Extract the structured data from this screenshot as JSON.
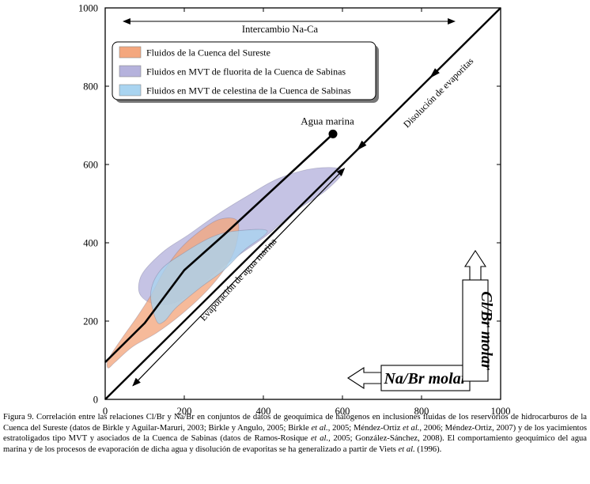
{
  "chart_data": {
    "type": "scatter",
    "xlim": [
      0,
      1000
    ],
    "ylim": [
      0,
      1000
    ],
    "xticks": [
      0,
      200,
      400,
      600,
      800,
      1000
    ],
    "yticks": [
      0,
      200,
      400,
      600,
      800,
      1000
    ],
    "xlabel": "Na/Br molar",
    "ylabel": "Cl/Br molar",
    "legend_position": "top-left",
    "legend": [
      {
        "label": "Fluidos de la Cuenca del Sureste",
        "color": "#f4a77e"
      },
      {
        "label": "Fluidos en MVT de fluorita de la Cuenca de Sabinas",
        "color": "#b5b2dc"
      },
      {
        "label": "Fluidos en MVT de celestina de la Cuenca de Sabinas",
        "color": "#a9d4f0"
      }
    ],
    "regions": [
      {
        "name": "Fluidos en MVT de fluorita de la Cuenca de Sabinas",
        "color": "#b5b2dc",
        "polygon": [
          [
            85,
            295
          ],
          [
            100,
            330
          ],
          [
            150,
            380
          ],
          [
            210,
            420
          ],
          [
            280,
            470
          ],
          [
            360,
            520
          ],
          [
            440,
            565
          ],
          [
            530,
            590
          ],
          [
            600,
            585
          ],
          [
            560,
            535
          ],
          [
            480,
            480
          ],
          [
            410,
            420
          ],
          [
            340,
            370
          ],
          [
            280,
            325
          ],
          [
            225,
            275
          ],
          [
            170,
            245
          ],
          [
            120,
            245
          ],
          [
            90,
            265
          ]
        ]
      },
      {
        "name": "Fluidos de la Cuenca del Sureste",
        "color": "#f4a77e",
        "polygon": [
          [
            5,
            95
          ],
          [
            15,
            115
          ],
          [
            45,
            160
          ],
          [
            80,
            210
          ],
          [
            115,
            265
          ],
          [
            150,
            330
          ],
          [
            190,
            385
          ],
          [
            240,
            430
          ],
          [
            290,
            460
          ],
          [
            335,
            455
          ],
          [
            330,
            390
          ],
          [
            300,
            330
          ],
          [
            250,
            270
          ],
          [
            190,
            215
          ],
          [
            130,
            170
          ],
          [
            70,
            135
          ],
          [
            25,
            95
          ],
          [
            8,
            80
          ]
        ]
      },
      {
        "name": "Fluidos en MVT de celestina de la Cuenca de Sabinas",
        "color": "#a9d4f0",
        "polygon": [
          [
            130,
            200
          ],
          [
            115,
            270
          ],
          [
            140,
            330
          ],
          [
            200,
            375
          ],
          [
            270,
            415
          ],
          [
            330,
            430
          ],
          [
            410,
            430
          ],
          [
            350,
            380
          ],
          [
            300,
            330
          ],
          [
            240,
            285
          ],
          [
            180,
            235
          ],
          [
            150,
            200
          ]
        ]
      }
    ],
    "seawater_point": {
      "label": "Agua marina",
      "x": 576,
      "y": 678
    },
    "lines": [
      {
        "name": "seawater-evaporation-trend",
        "points": [
          [
            0,
            95
          ],
          [
            100,
            195
          ],
          [
            200,
            330
          ],
          [
            300,
            420
          ],
          [
            576,
            678
          ]
        ]
      },
      {
        "name": "dissolution-line",
        "points": [
          [
            0,
            0
          ],
          [
            1000,
            1000
          ]
        ]
      },
      {
        "name": "evaporation-arrow-line",
        "points": [
          [
            70,
            35
          ],
          [
            605,
            590
          ]
        ]
      }
    ],
    "annotations": [
      {
        "name": "exchange",
        "text": "Intercambio Na-Ca"
      },
      {
        "name": "evaporation",
        "text": "Evaporación de agua marina"
      },
      {
        "name": "dissolution",
        "text": "Disolución de evaporitas"
      }
    ]
  },
  "caption": {
    "figure_label": "Figura 9.",
    "segments": [
      {
        "t": " Correlación entre las relaciones Cl/Br y Na/Br en conjuntos de datos de geoquímica de halógenos en inclusiones fluidas de los reservorios de hidrocarburos de la Cuenca del Sureste (datos de Birkle y Aguilar-Maruri, 2003; Birkle y Angulo, 2005; Birkle ",
        "i": false
      },
      {
        "t": "et al.",
        "i": true
      },
      {
        "t": ", 2005; Méndez-Ortiz ",
        "i": false
      },
      {
        "t": "et al.",
        "i": true
      },
      {
        "t": ", 2006; Méndez-Ortiz, 2007) y de los yacimientos estratoligados tipo MVT y asociados de la Cuenca de Sabinas (datos de Ramos-Rosique ",
        "i": false
      },
      {
        "t": "et al.",
        "i": true
      },
      {
        "t": ", 2005; González-Sánchez, 2008). El comportamiento geoquímico del agua marina y de los procesos de evaporación de dicha agua y disolución de evaporitas se ha generalizado a partir de Viets ",
        "i": false
      },
      {
        "t": "et al.",
        "i": true
      },
      {
        "t": " (1996).",
        "i": false
      }
    ]
  }
}
